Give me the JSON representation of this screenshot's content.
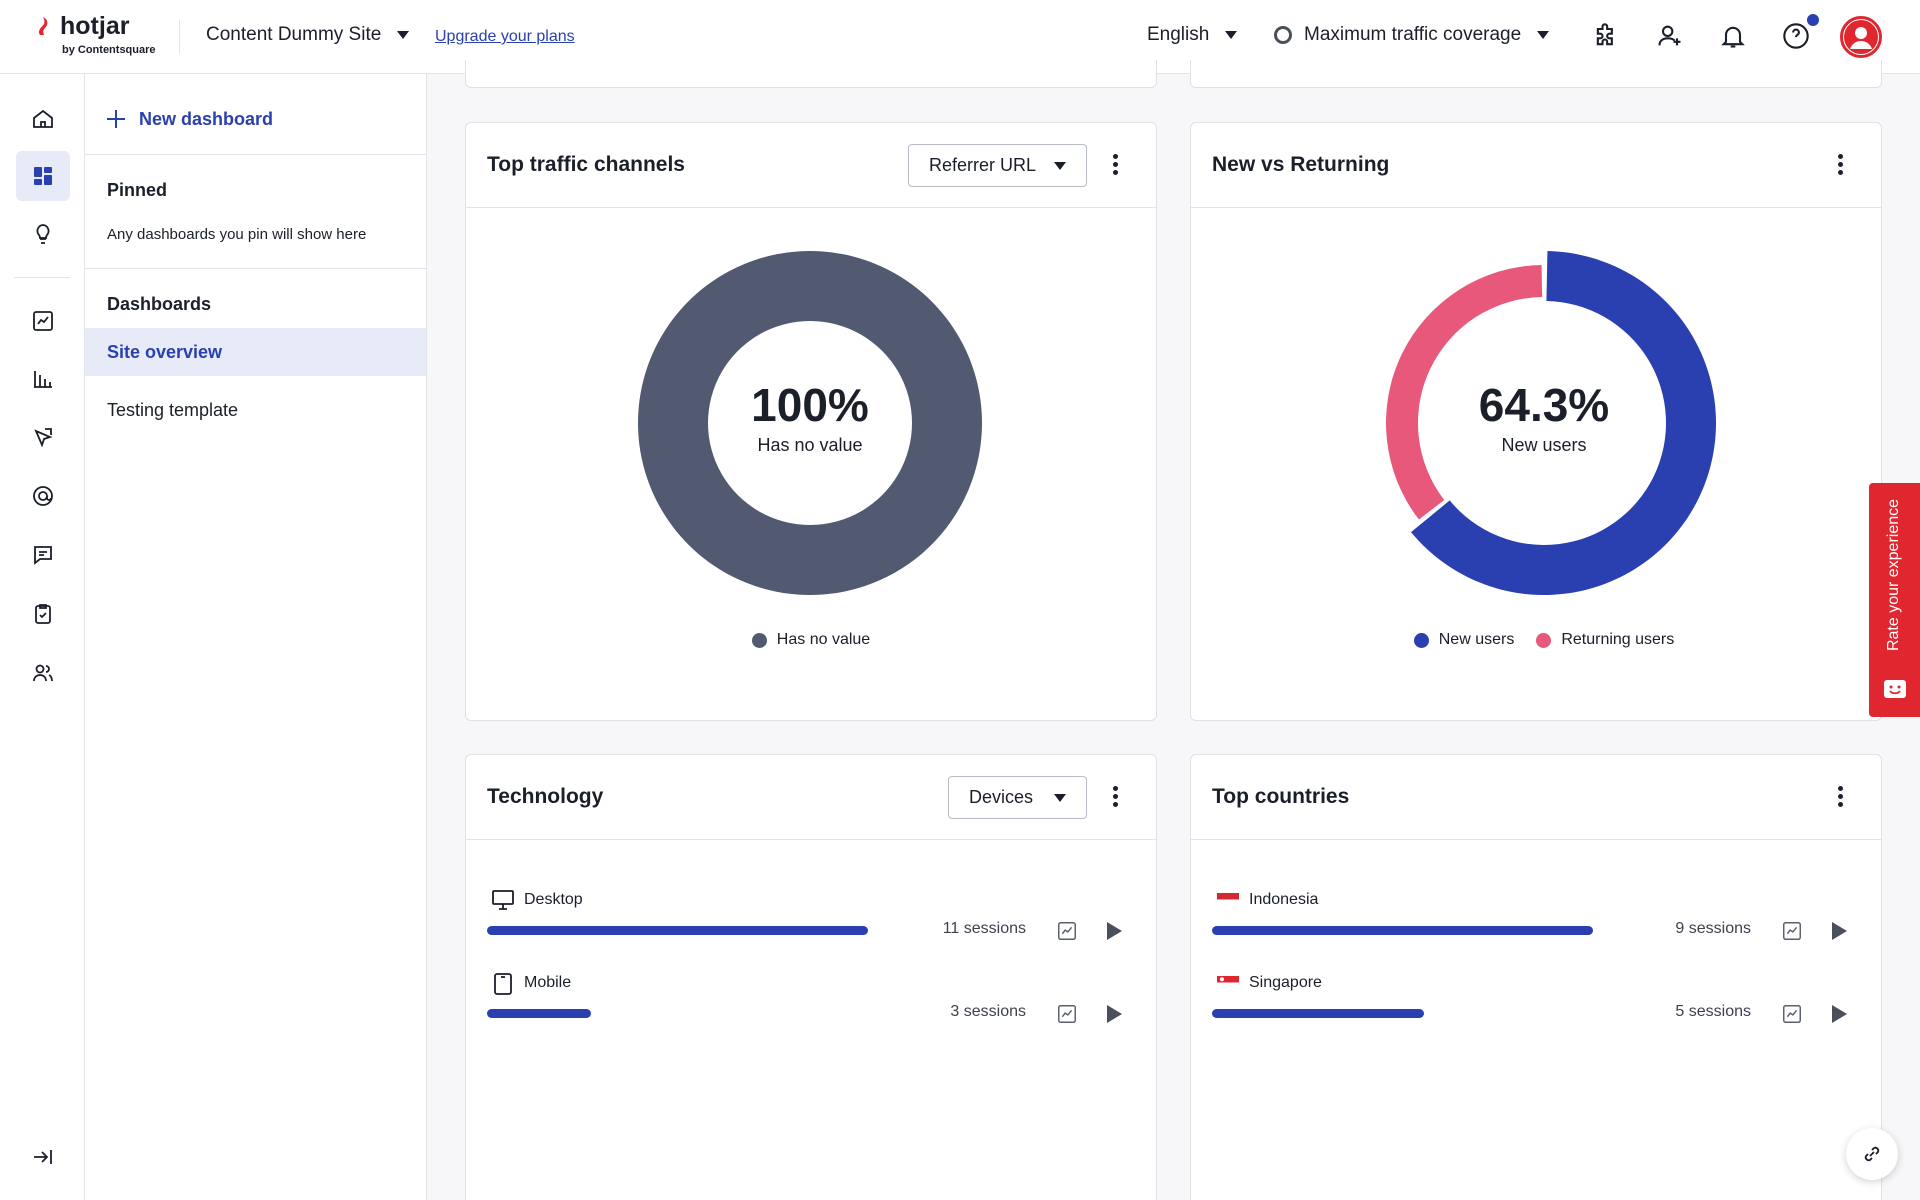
{
  "topbar": {
    "logo_text": "hotjar",
    "logo_sub": "by Contentsquare",
    "site_name": "Content Dummy Site",
    "upgrade_link": "Upgrade your plans",
    "language": "English",
    "traffic": "Maximum traffic coverage"
  },
  "sidebar": {
    "new_dashboard": "New dashboard",
    "pinned_title": "Pinned",
    "pinned_hint": "Any dashboards you pin will show here",
    "dashboards_title": "Dashboards",
    "items": [
      {
        "label": "Site overview",
        "active": true
      },
      {
        "label": "Testing template",
        "active": false
      }
    ]
  },
  "cards": {
    "traffic": {
      "title": "Top traffic channels",
      "dropdown": "Referrer URL",
      "center_value": "100%",
      "center_label": "Has no value",
      "legend": [
        {
          "label": "Has no value",
          "color": "#525a72",
          "value": 100
        }
      ]
    },
    "returning": {
      "title": "New vs Returning",
      "center_value": "64.3%",
      "center_label": "New users",
      "legend": [
        {
          "label": "New users",
          "color": "#2a3fb0",
          "value": 64.3
        },
        {
          "label": "Returning users",
          "color": "#e8587a",
          "value": 35.7
        }
      ]
    },
    "technology": {
      "title": "Technology",
      "dropdown": "Devices",
      "rows": [
        {
          "label": "Desktop",
          "sessions": "11 sessions",
          "count": 11,
          "icon": "desktop-icon"
        },
        {
          "label": "Mobile",
          "sessions": "3 sessions",
          "count": 3,
          "icon": "mobile-icon"
        }
      ]
    },
    "countries": {
      "title": "Top countries",
      "rows": [
        {
          "label": "Indonesia",
          "sessions": "9 sessions",
          "count": 9,
          "icon": "indonesia-flag-icon"
        },
        {
          "label": "Singapore",
          "sessions": "5 sessions",
          "count": 5,
          "icon": "singapore-flag-icon"
        }
      ]
    }
  },
  "feedback_tab": "Rate your experience",
  "colors": {
    "accent": "#2a3fb0",
    "brand": "#e0262f",
    "returning": "#e8587a",
    "neutral": "#525a72"
  }
}
